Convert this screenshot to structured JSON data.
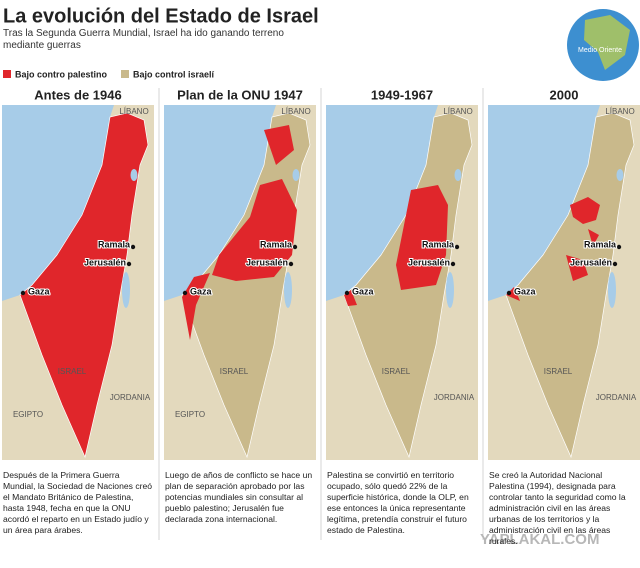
{
  "header": {
    "title": "La evolución del Estado de Israel",
    "subtitle": "Tras la Segunda Guerra Mundial, Israel ha ido ganando terreno mediante guerras"
  },
  "globe": {
    "label": "Medio Oriente"
  },
  "legend": [
    {
      "label": "Bajo contro palestino",
      "color": "#e0262b"
    },
    {
      "label": "Bajo control israelí",
      "color": "#c9b98b"
    }
  ],
  "panels": [
    {
      "title": "Antes de 1946",
      "labels": [
        "LÍBANO",
        "Ramala",
        "Jerusalén",
        "Gaza",
        "ISRAEL",
        "EGIPTO",
        "JORDANIA"
      ],
      "caption": "Después de la Primera Guerra Mundial, la Sociedad de Naciones creó el Mandato Británico de Palestina, hasta 1948, fecha en que la ONU acordó el reparto en un Estado judío y un área para árabes."
    },
    {
      "title": "Plan de la ONU 1947",
      "labels": [
        "LÍBANO",
        "Ramala",
        "Jerusalén",
        "Gaza",
        "ISRAEL",
        "EGIPTO"
      ],
      "caption": "Luego de años de conflicto se hace un plan de separación aprobado por las potencias mundiales sin consultar al pueblo palestino; Jerusalén fue declarada zona internacional."
    },
    {
      "title": "1949-1967",
      "labels": [
        "LÍBANO",
        "Ramala",
        "Jerusalén",
        "Gaza",
        "ISRAEL",
        "JORDANIA"
      ],
      "caption": "Palestina se convirtió en territorio ocupado, sólo quedó 22% de la superficie histórica, donde la OLP, en ese entonces la única representante legítima, pretendía construir el futuro estado de Palestina."
    },
    {
      "title": "2000",
      "labels": [
        "LÍBANO",
        "Ramala",
        "Jerusalén",
        "Gaza",
        "ISRAEL",
        "JORDANIA"
      ],
      "caption": "Se creó la Autoridad Nacional Palestina (1994), designada para controlar tanto la seguridad como la administración civil en las áreas urbanas de los territorios y la administración civil en las áreas rurales."
    }
  ],
  "watermark": "YAPLAKAL.COM"
}
